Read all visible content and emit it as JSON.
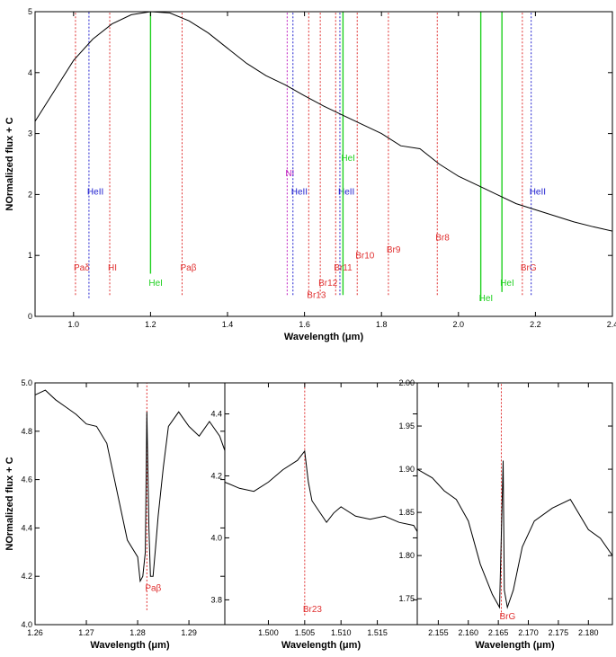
{
  "chart_data": [
    {
      "type": "line",
      "xlabel": "Wavelength (μm)",
      "ylabel": "NOrmalized flux + C",
      "xlim": [
        0.9,
        2.4
      ],
      "ylim": [
        0,
        5
      ],
      "xticks": [
        1.0,
        1.2,
        1.4,
        1.6,
        1.8,
        2.0,
        2.2,
        2.4
      ],
      "xtick_labels": [
        "1.0",
        "1.2",
        "1.4",
        "1.6",
        "1.8",
        "2.0",
        "2.2",
        "2.4"
      ],
      "yticks": [
        0,
        1,
        2,
        3,
        4,
        5
      ],
      "ytick_labels": [
        "0",
        "1",
        "2",
        "3",
        "4",
        "5"
      ],
      "grid": false,
      "series": [
        {
          "x": [
            0.9,
            0.95,
            1.0,
            1.05,
            1.1,
            1.15,
            1.2,
            1.25,
            1.3,
            1.35,
            1.4,
            1.45,
            1.5,
            1.55,
            1.6,
            1.65,
            1.7,
            1.75,
            1.8,
            1.85,
            1.9,
            1.95,
            2.0,
            2.05,
            2.1,
            2.15,
            2.2,
            2.25,
            2.3,
            2.35,
            2.4
          ],
          "values": [
            3.2,
            3.7,
            4.2,
            4.55,
            4.8,
            4.95,
            5.0,
            4.98,
            4.85,
            4.65,
            4.4,
            4.15,
            3.95,
            3.8,
            3.62,
            3.45,
            3.3,
            3.15,
            3.0,
            2.8,
            2.75,
            2.5,
            2.3,
            2.15,
            2.0,
            1.85,
            1.75,
            1.65,
            1.55,
            1.47,
            1.4
          ],
          "color": "#000000"
        }
      ],
      "line_markers": [
        {
          "x": 1.005,
          "label": "Paδ",
          "color": "#e03030",
          "style": "dotted",
          "ybot": 0.35,
          "ytop": 5.0,
          "label_y": 0.75
        },
        {
          "x": 1.04,
          "label": "HeII",
          "color": "#2020d0",
          "style": "dotted",
          "ybot": 0.3,
          "ytop": 5.0,
          "label_y": 2.0
        },
        {
          "x": 1.094,
          "label": "HI",
          "color": "#e03030",
          "style": "dotted",
          "ybot": 0.35,
          "ytop": 5.0,
          "label_y": 0.75
        },
        {
          "x": 1.2,
          "label": "HeI",
          "color": "#20d020",
          "style": "solid",
          "ybot": 0.7,
          "ytop": 5.0,
          "label_y": 0.5
        },
        {
          "x": 1.282,
          "label": "Paβ",
          "color": "#e03030",
          "style": "dotted",
          "ybot": 0.35,
          "ytop": 5.0,
          "label_y": 0.75
        },
        {
          "x": 1.555,
          "label": "NI",
          "color": "#c020c0",
          "style": "dotted",
          "ybot": 0.35,
          "ytop": 5.0,
          "label_y": 2.3
        },
        {
          "x": 1.57,
          "label": "HeII",
          "color": "#2020d0",
          "style": "dotted",
          "ybot": 0.35,
          "ytop": 5.0,
          "label_y": 2.0
        },
        {
          "x": 1.611,
          "label": "Br13",
          "color": "#e03030",
          "style": "dotted",
          "ybot": 0.35,
          "ytop": 5.0,
          "label_y": 0.3
        },
        {
          "x": 1.641,
          "label": "Br12",
          "color": "#e03030",
          "style": "dotted",
          "ybot": 0.35,
          "ytop": 5.0,
          "label_y": 0.5
        },
        {
          "x": 1.681,
          "label": "Br11",
          "color": "#e03030",
          "style": "dotted",
          "ybot": 0.35,
          "ytop": 5.0,
          "label_y": 0.75
        },
        {
          "x": 1.692,
          "label": "HeII",
          "color": "#2020d0",
          "style": "dotted",
          "ybot": 0.35,
          "ytop": 5.0,
          "label_y": 2.0
        },
        {
          "x": 1.7,
          "label": "HeI",
          "color": "#20d020",
          "style": "solid",
          "ybot": 0.35,
          "ytop": 5.0,
          "label_y": 2.55
        },
        {
          "x": 1.737,
          "label": "Br10",
          "color": "#e03030",
          "style": "dotted",
          "ybot": 0.35,
          "ytop": 5.0,
          "label_y": 0.95
        },
        {
          "x": 1.818,
          "label": "Br9",
          "color": "#e03030",
          "style": "dotted",
          "ybot": 0.35,
          "ytop": 5.0,
          "label_y": 1.05
        },
        {
          "x": 1.945,
          "label": "Br8",
          "color": "#e03030",
          "style": "dotted",
          "ybot": 0.35,
          "ytop": 5.0,
          "label_y": 1.25
        },
        {
          "x": 2.058,
          "label": "HeI",
          "color": "#20d020",
          "style": "solid",
          "ybot": 0.25,
          "ytop": 5.0,
          "label_y": 0.25
        },
        {
          "x": 2.113,
          "label": "HeI",
          "color": "#20d020",
          "style": "solid",
          "ybot": 0.4,
          "ytop": 5.0,
          "label_y": 0.5
        },
        {
          "x": 2.166,
          "label": "BrG",
          "color": "#e03030",
          "style": "dotted",
          "ybot": 0.35,
          "ytop": 5.0,
          "label_y": 0.75
        },
        {
          "x": 2.189,
          "label": "HeII",
          "color": "#2020d0",
          "style": "dotted",
          "ybot": 0.35,
          "ytop": 5.0,
          "label_y": 2.0
        }
      ]
    },
    {
      "type": "line",
      "xlabel": "Wavelength (μm)",
      "ylabel": "NOrmalized flux + C",
      "xlim": [
        1.26,
        1.297
      ],
      "ylim": [
        4.0,
        5.0
      ],
      "xticks": [
        1.26,
        1.27,
        1.28,
        1.29
      ],
      "xtick_labels": [
        "1.26",
        "1.27",
        "1.28",
        "1.29"
      ],
      "yticks": [
        4.0,
        4.2,
        4.4,
        4.6,
        4.8,
        5.0
      ],
      "ytick_labels": [
        "4.0",
        "4.2",
        "4.4",
        "4.6",
        "4.8",
        "5.0"
      ],
      "series": [
        {
          "x": [
            1.26,
            1.262,
            1.264,
            1.266,
            1.268,
            1.27,
            1.272,
            1.274,
            1.276,
            1.278,
            1.28,
            1.2805,
            1.281,
            1.2815,
            1.2818,
            1.2822,
            1.2825,
            1.283,
            1.2835,
            1.284,
            1.285,
            1.286,
            1.288,
            1.29,
            1.292,
            1.294,
            1.296,
            1.297
          ],
          "values": [
            4.95,
            4.97,
            4.93,
            4.9,
            4.87,
            4.83,
            4.82,
            4.75,
            4.55,
            4.35,
            4.28,
            4.18,
            4.2,
            4.3,
            4.88,
            4.4,
            4.2,
            4.2,
            4.32,
            4.45,
            4.65,
            4.82,
            4.88,
            4.82,
            4.78,
            4.84,
            4.78,
            4.72
          ],
          "color": "#000000"
        }
      ],
      "line_markers": [
        {
          "x": 1.2818,
          "label": "Paβ",
          "color": "#e03030",
          "style": "dotted",
          "ybot": 4.06,
          "ytop": 5.0,
          "label_y": 4.14
        }
      ]
    },
    {
      "type": "line",
      "xlabel": "Wavelength (μm)",
      "xlim": [
        1.494,
        1.5205
      ],
      "ylim": [
        3.72,
        4.5
      ],
      "xticks": [
        1.5,
        1.505,
        1.51,
        1.515
      ],
      "xtick_labels": [
        "1.500",
        "1.505",
        "1.510",
        "1.515"
      ],
      "yticks": [
        3.8,
        4.0,
        4.2,
        4.4
      ],
      "ytick_labels": [
        "3.8",
        "4.0",
        "4.2",
        "4.4"
      ],
      "series": [
        {
          "x": [
            1.494,
            1.496,
            1.498,
            1.5,
            1.502,
            1.504,
            1.505,
            1.5055,
            1.506,
            1.508,
            1.509,
            1.51,
            1.512,
            1.514,
            1.516,
            1.518,
            1.52,
            1.5205
          ],
          "values": [
            4.18,
            4.16,
            4.15,
            4.18,
            4.22,
            4.25,
            4.28,
            4.18,
            4.12,
            4.05,
            4.08,
            4.1,
            4.07,
            4.06,
            4.07,
            4.05,
            4.04,
            4.02
          ],
          "color": "#000000"
        }
      ],
      "line_markers": [
        {
          "x": 1.505,
          "label": "Br23",
          "color": "#e03030",
          "style": "dotted",
          "ybot": 3.75,
          "ytop": 4.5,
          "label_y": 3.76
        }
      ]
    },
    {
      "type": "line",
      "xlabel": "Wavelength (μm)",
      "xlim": [
        2.1515,
        2.184
      ],
      "ylim": [
        1.72,
        2.0
      ],
      "xticks": [
        2.155,
        2.16,
        2.165,
        2.17,
        2.175,
        2.18
      ],
      "xtick_labels": [
        "2.155",
        "2.160",
        "2.165",
        "2.170",
        "2.175",
        "2.180"
      ],
      "yticks": [
        1.75,
        1.8,
        1.85,
        1.9,
        1.95,
        2.0
      ],
      "ytick_labels": [
        "1.75",
        "1.80",
        "1.85",
        "1.90",
        "1.95",
        "2.00"
      ],
      "series": [
        {
          "x": [
            2.1515,
            2.154,
            2.156,
            2.158,
            2.16,
            2.162,
            2.164,
            2.1652,
            2.1658,
            2.166,
            2.1665,
            2.1675,
            2.169,
            2.171,
            2.174,
            2.177,
            2.18,
            2.182,
            2.184
          ],
          "values": [
            1.9,
            1.89,
            1.875,
            1.865,
            1.84,
            1.79,
            1.755,
            1.74,
            1.91,
            1.76,
            1.74,
            1.76,
            1.81,
            1.84,
            1.855,
            1.865,
            1.83,
            1.82,
            1.8
          ],
          "color": "#000000"
        }
      ],
      "line_markers": [
        {
          "x": 2.1655,
          "label": "BrG",
          "color": "#e03030",
          "style": "dotted",
          "ybot": 1.73,
          "ytop": 2.0,
          "label_y": 1.726
        }
      ]
    }
  ]
}
